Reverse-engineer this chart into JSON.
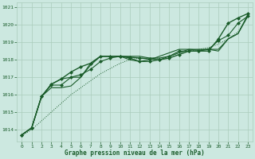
{
  "bg_color": "#cce8e0",
  "grid_color": "#aaccbb",
  "line_color": "#1a5c2a",
  "marker_color": "#1a5c2a",
  "xlabel": "Graphe pression niveau de la mer (hPa)",
  "xlabel_color": "#1a5c2a",
  "tick_color": "#1a5c2a",
  "xlim": [
    -0.5,
    23.5
  ],
  "ylim": [
    1013.3,
    1021.3
  ],
  "yticks": [
    1014,
    1015,
    1016,
    1017,
    1018,
    1019,
    1020,
    1021
  ],
  "xticks": [
    0,
    1,
    2,
    3,
    4,
    5,
    6,
    7,
    8,
    9,
    10,
    11,
    12,
    13,
    14,
    15,
    16,
    17,
    18,
    19,
    20,
    21,
    22,
    23
  ],
  "series": [
    {
      "y": [
        1013.7,
        1014.1,
        1015.9,
        1016.6,
        1016.9,
        1017.3,
        1017.6,
        1017.8,
        1018.2,
        1018.2,
        1018.2,
        1018.15,
        1018.1,
        1018.05,
        1018.0,
        1018.1,
        1018.3,
        1018.5,
        1018.5,
        1018.5,
        1019.2,
        1020.1,
        1020.4,
        1020.65
      ],
      "style": "marker_line",
      "lw": 1.0
    },
    {
      "y": [
        1013.7,
        1014.1,
        1015.9,
        1016.55,
        1016.55,
        1017.0,
        1017.15,
        1017.45,
        1017.9,
        1018.1,
        1018.2,
        1018.1,
        1017.9,
        1017.9,
        1018.0,
        1018.2,
        1018.5,
        1018.5,
        1018.5,
        1018.6,
        1019.1,
        1019.4,
        1020.1,
        1020.5
      ],
      "style": "marker_line",
      "lw": 0.8
    },
    {
      "y": [
        1013.7,
        1014.1,
        1015.9,
        1016.4,
        1016.4,
        1016.5,
        1017.0,
        1017.7,
        1018.2,
        1018.2,
        1018.2,
        1018.2,
        1018.2,
        1018.1,
        1018.1,
        1018.2,
        1018.4,
        1018.6,
        1018.55,
        1018.6,
        1018.6,
        1019.2,
        1019.5,
        1020.6
      ],
      "style": "plain",
      "lw": 0.8
    },
    {
      "y": [
        1013.7,
        1014.1,
        1015.9,
        1016.6,
        1016.9,
        1017.0,
        1017.0,
        1017.8,
        1018.2,
        1018.2,
        1018.2,
        1018.0,
        1017.9,
        1018.0,
        1018.2,
        1018.4,
        1018.6,
        1018.6,
        1018.6,
        1018.6,
        1018.5,
        1019.2,
        1019.5,
        1020.5
      ],
      "style": "plain",
      "lw": 0.8
    },
    {
      "y": [
        1013.65,
        1014.0,
        1014.5,
        1015.0,
        1015.5,
        1016.0,
        1016.4,
        1016.8,
        1017.2,
        1017.5,
        1017.8,
        1018.0,
        1018.1,
        1018.1,
        1018.1,
        1018.2,
        1018.4,
        1018.5,
        1018.6,
        1018.7,
        1018.9,
        1019.2,
        1019.6,
        1020.5
      ],
      "style": "dotted",
      "lw": 0.7
    }
  ]
}
